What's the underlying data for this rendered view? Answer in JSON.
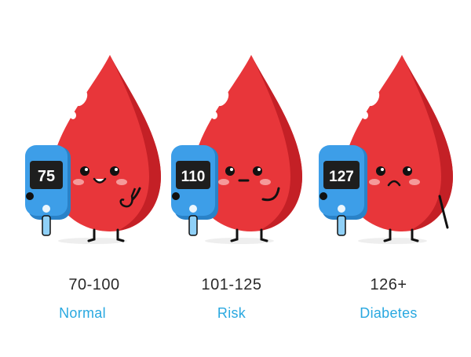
{
  "colors": {
    "drop": "#e8363a",
    "drop_dark": "#c42026",
    "meter": "#3d9ee8",
    "meter_dark": "#2a82c8",
    "screen": "#1e1e1e",
    "label": "#29a8e0",
    "cheek": "#f59a9a"
  },
  "items": [
    {
      "reading": "75",
      "range": "70-100",
      "label": "Normal",
      "mood": "happy"
    },
    {
      "reading": "110",
      "range": "101-125",
      "label": "Risk",
      "mood": "neutral"
    },
    {
      "reading": "127",
      "range": "126+",
      "label": "Diabetes",
      "mood": "sad"
    }
  ]
}
